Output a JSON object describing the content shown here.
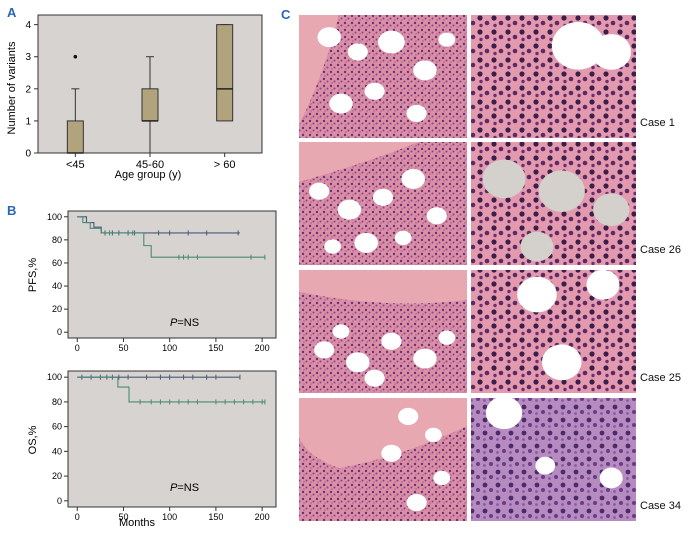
{
  "panels": {
    "a": "A",
    "b": "B",
    "c": "C"
  },
  "colors": {
    "plot_bg": "#d6d3d1",
    "box_fill": "#b1a37c",
    "pfs_upper": "#4a5a78",
    "pfs_lower": "#4c8a72",
    "letter": "#2a67b1",
    "he_pink": "#e8a8b2",
    "he_purple": "#8a3e86"
  },
  "chart_data": [
    {
      "type": "box",
      "panel": "A",
      "categories": [
        "<45",
        "45-60",
        "> 60"
      ],
      "boxes": [
        {
          "category": "<45",
          "whisker_low": 0,
          "q1": 0,
          "median": 0,
          "q3": 1,
          "whisker_high": 2,
          "outliers": [
            3
          ]
        },
        {
          "category": "45-60",
          "whisker_low": 0,
          "q1": 1,
          "median": 1,
          "q3": 2,
          "whisker_high": 3,
          "outliers": []
        },
        {
          "category": "> 60",
          "whisker_low": 1,
          "q1": 1,
          "median": 2,
          "q3": 4,
          "whisker_high": 4,
          "outliers": []
        }
      ],
      "xlabel": "Age group (y)",
      "ylabel": "Number of variants",
      "ylim": [
        0,
        4.3
      ],
      "yticks": [
        0,
        1,
        2,
        3,
        4
      ]
    },
    {
      "type": "line",
      "panel": "B",
      "ylabel": "PFS,%",
      "xlabel": "",
      "xlim": [
        -10,
        215
      ],
      "ylim": [
        -5,
        105
      ],
      "xticks": [
        0,
        50,
        100,
        150,
        200
      ],
      "yticks": [
        0,
        20,
        40,
        60,
        80,
        100
      ],
      "annotation": {
        "p": "P",
        "rest": "=NS"
      },
      "series": [
        {
          "steps": [
            [
              0,
              100
            ],
            [
              10,
              95
            ],
            [
              18,
              91
            ],
            [
              26,
              86
            ],
            [
              176,
              86
            ]
          ],
          "censors": [
            30,
            38,
            45,
            55,
            62,
            88,
            100,
            120,
            140,
            174
          ]
        },
        {
          "steps": [
            [
              0,
              100
            ],
            [
              6,
              95
            ],
            [
              14,
              90
            ],
            [
              26,
              86
            ],
            [
              68,
              86
            ],
            [
              72,
              75
            ],
            [
              80,
              65
            ],
            [
              203,
              65
            ]
          ],
          "censors": [
            35,
            60,
            110,
            115,
            120,
            130,
            188,
            203
          ]
        }
      ]
    },
    {
      "type": "line",
      "panel": "B",
      "ylabel": "OS,%",
      "xlabel": "Months",
      "xlim": [
        -10,
        215
      ],
      "ylim": [
        -5,
        105
      ],
      "xticks": [
        0,
        50,
        100,
        150,
        200
      ],
      "yticks": [
        0,
        20,
        40,
        60,
        80,
        100
      ],
      "annotation": {
        "p": "P",
        "rest": "=NS"
      },
      "series": [
        {
          "steps": [
            [
              0,
              100
            ],
            [
              176,
              100
            ]
          ],
          "censors": [
            5,
            15,
            25,
            32,
            38,
            45,
            55,
            75,
            90,
            100,
            115,
            125,
            140,
            150,
            176
          ]
        },
        {
          "steps": [
            [
              0,
              100
            ],
            [
              40,
              100
            ],
            [
              44,
              92
            ],
            [
              56,
              80
            ],
            [
              203,
              80
            ]
          ],
          "censors": [
            68,
            80,
            90,
            100,
            110,
            120,
            130,
            150,
            160,
            170,
            180,
            190,
            200,
            203
          ]
        }
      ]
    }
  ],
  "histology": {
    "cases": [
      {
        "label": "Case 1",
        "tone": "pink"
      },
      {
        "label": "Case 26",
        "tone": "pink"
      },
      {
        "label": "Case 25",
        "tone": "pink"
      },
      {
        "label": "Case 34",
        "tone": "purple"
      }
    ]
  }
}
